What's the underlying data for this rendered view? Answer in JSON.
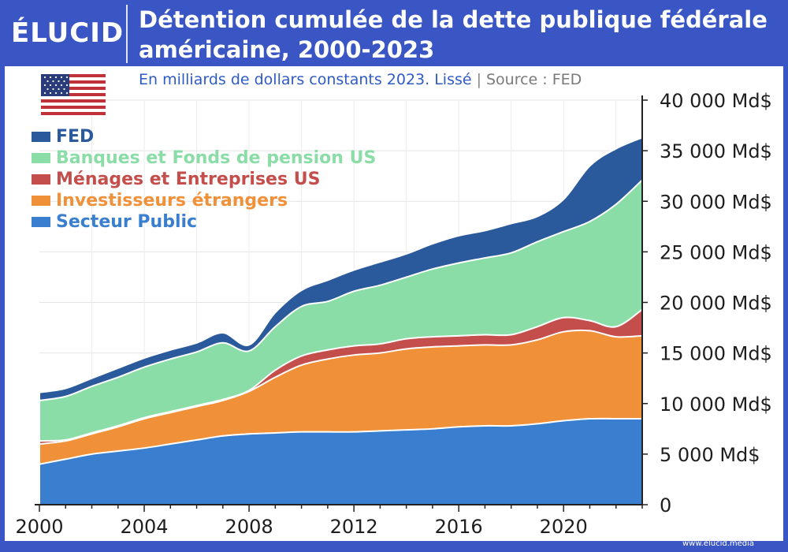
{
  "brand": {
    "logo": "ÉLUCID",
    "credit": "www.elucid.media"
  },
  "title": "Détention cumulée de la dette publique fédérale américaine, 2000-2023",
  "subtitle": {
    "text": "En milliards de dollars constants 2023. Lissé",
    "separator": "|",
    "source": "Source : FED"
  },
  "flag": {
    "country": "USA",
    "icon": "us-flag-icon"
  },
  "colors": {
    "frame": "#3a55c4",
    "fed": "#2b5a9c",
    "banques": "#8bdda7",
    "menages": "#c44e4c",
    "investisseurs": "#f0913a",
    "public": "#3a7fcf"
  },
  "chart_data": {
    "type": "area",
    "stacked": true,
    "title": "Détention cumulée de la dette publique fédérale américaine, 2000-2023",
    "ylabel": "En milliards de dollars constants 2023",
    "x": [
      2000,
      2001,
      2002,
      2003,
      2004,
      2005,
      2006,
      2007,
      2008,
      2009,
      2010,
      2011,
      2012,
      2013,
      2014,
      2015,
      2016,
      2017,
      2018,
      2019,
      2020,
      2021,
      2022,
      2023
    ],
    "xticks": [
      2000,
      2004,
      2008,
      2012,
      2016,
      2020
    ],
    "xtick_labels": [
      "2000",
      "2004",
      "2008",
      "2012",
      "2016",
      "2020"
    ],
    "ylim": [
      0,
      40000
    ],
    "yticks": [
      0,
      5000,
      10000,
      15000,
      20000,
      25000,
      30000,
      35000,
      40000
    ],
    "ytick_labels": [
      "0",
      "5 000 Md$",
      "10 000 Md$",
      "15 000 Md$",
      "20 000 Md$",
      "25 000 Md$",
      "30 000 Md$",
      "35 000 Md$",
      "40 000 Md$"
    ],
    "grid": true,
    "legend_position": "top-left",
    "series": [
      {
        "name": "Secteur Public",
        "key": "public",
        "values": [
          4000,
          4500,
          5000,
          5300,
          5600,
          6000,
          6400,
          6800,
          7000,
          7100,
          7200,
          7200,
          7200,
          7300,
          7400,
          7500,
          7700,
          7800,
          7800,
          8000,
          8300,
          8500,
          8500,
          8500
        ]
      },
      {
        "name": "Investisseurs étrangers",
        "key": "investisseurs",
        "values": [
          2000,
          1800,
          2000,
          2400,
          2900,
          3100,
          3300,
          3500,
          4200,
          5500,
          6600,
          7200,
          7600,
          7700,
          8000,
          8100,
          8000,
          8000,
          8000,
          8300,
          8800,
          8700,
          8100,
          8200
        ]
      },
      {
        "name": "Ménages et Entreprises US",
        "key": "menages",
        "values": [
          300,
          100,
          100,
          100,
          100,
          100,
          100,
          100,
          100,
          700,
          900,
          900,
          900,
          900,
          1000,
          1000,
          1000,
          1000,
          1000,
          1300,
          1400,
          1000,
          1000,
          2600
        ]
      },
      {
        "name": "Banques et Fonds de pension US",
        "key": "banques",
        "values": [
          4000,
          4300,
          4600,
          4800,
          5000,
          5200,
          5300,
          5600,
          3900,
          4300,
          4900,
          4800,
          5400,
          5800,
          6100,
          6700,
          7200,
          7600,
          8100,
          8400,
          8500,
          9800,
          12100,
          12800
        ]
      },
      {
        "name": "FED",
        "key": "fed",
        "values": [
          800,
          800,
          800,
          900,
          900,
          900,
          900,
          1000,
          600,
          1400,
          1600,
          2100,
          2100,
          2300,
          2300,
          2500,
          2700,
          2700,
          2900,
          2500,
          3200,
          5500,
          5500,
          4200
        ]
      }
    ],
    "legend_order": [
      "FED",
      "Banques et Fonds de pension US",
      "Ménages et Entreprises US",
      "Investisseurs étrangers",
      "Secteur Public"
    ]
  }
}
